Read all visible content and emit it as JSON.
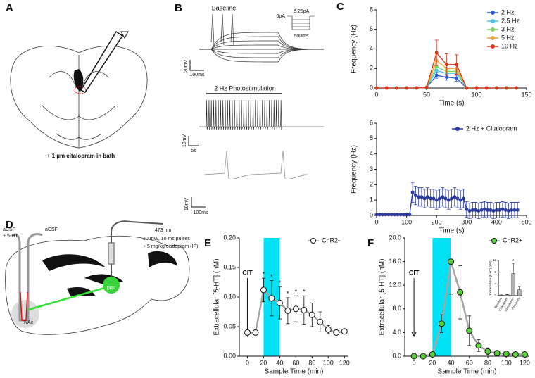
{
  "panel_labels": [
    "A",
    "B",
    "C",
    "D",
    "E",
    "F"
  ],
  "diagram_a": {
    "note": "+ 1 µm citalopram in bath"
  },
  "traces_b": {
    "baseline_title": "Baseline",
    "baseline_v_scale": "20mV",
    "baseline_t_scale": "100ms",
    "protocol_zero": "0pA",
    "protocol_step": "Δ 25pA",
    "protocol_duration": "500ms",
    "stim_title": "2 Hz Photostimulation",
    "stim_v_scale": "10mV",
    "stim_t_scale": "5s",
    "zoom_v_scale": "10mV",
    "zoom_t_scale": "100ms"
  },
  "diagram_d": {
    "probe_left": [
      "aCSF",
      "+ 5-HT"
    ],
    "probe_right": "aCSF",
    "laser": [
      "473 nm",
      "10 mW, 10 ms pulses",
      "+ 5 mg/kg citalopram (IP)"
    ],
    "drn": "DRN",
    "nac": "NAc"
  },
  "chart_data": [
    {
      "type": "line",
      "panel": "C",
      "x_label": "Time (s)",
      "y_label": "Frequency (Hz)",
      "x": [
        0,
        10,
        20,
        30,
        40,
        50,
        60,
        70,
        80,
        90,
        100,
        110,
        120,
        130,
        140
      ],
      "xlim": [
        0,
        150
      ],
      "xticks": [
        0,
        50,
        100,
        150
      ],
      "ylim": [
        0,
        8
      ],
      "yticks": [
        0,
        2,
        4,
        6,
        8
      ],
      "zero_line": true,
      "series": [
        {
          "name": "2 Hz",
          "color": "#2f5fd6",
          "values": [
            0,
            0,
            0,
            0,
            0,
            0.05,
            1.3,
            1.1,
            1.0,
            0,
            0,
            0,
            0,
            0,
            0
          ],
          "errors": [
            0,
            0,
            0,
            0,
            0,
            0,
            0.3,
            0.3,
            0.3,
            0,
            0,
            0,
            0,
            0,
            0
          ]
        },
        {
          "name": "2.5 Hz",
          "color": "#49c2e8",
          "values": [
            0,
            0,
            0,
            0,
            0,
            0.05,
            1.8,
            1.5,
            1.5,
            0,
            0,
            0,
            0,
            0,
            0
          ]
        },
        {
          "name": "3 Hz",
          "color": "#7fd35a",
          "values": [
            0,
            0,
            0,
            0,
            0,
            0.05,
            2.2,
            1.7,
            1.7,
            0,
            0,
            0,
            0,
            0,
            0
          ]
        },
        {
          "name": "5 Hz",
          "color": "#f5a030",
          "values": [
            0,
            0,
            0,
            0,
            0,
            0.05,
            2.8,
            2.0,
            2.0,
            0,
            0,
            0,
            0,
            0,
            0
          ]
        },
        {
          "name": "10 Hz",
          "color": "#d63a1e",
          "values": [
            0,
            0,
            0,
            0,
            0,
            0.05,
            3.6,
            2.4,
            2.4,
            0,
            0,
            0,
            0,
            0,
            0
          ],
          "errors": [
            0,
            0,
            0,
            0,
            0,
            0,
            1.3,
            1.1,
            1.0,
            0,
            0,
            0,
            0,
            0,
            0
          ]
        }
      ]
    },
    {
      "type": "line",
      "panel": "C",
      "x_label": "Time (s)",
      "y_label": "Frequency (Hz)",
      "x": [
        0,
        10,
        20,
        30,
        40,
        50,
        60,
        70,
        80,
        90,
        100,
        110,
        120,
        130,
        140,
        150,
        160,
        170,
        180,
        190,
        200,
        210,
        220,
        230,
        240,
        250,
        260,
        270,
        280,
        290,
        300,
        310,
        320,
        330,
        340,
        350,
        360,
        370,
        380,
        390,
        400,
        410,
        420,
        430,
        440,
        450,
        460,
        470
      ],
      "xlim": [
        0,
        500
      ],
      "xticks": [
        0,
        100,
        200,
        300,
        400,
        500
      ],
      "ylim": [
        0,
        6
      ],
      "yticks": [
        0,
        1,
        2,
        3,
        4,
        5,
        6
      ],
      "zero_line": true,
      "series": [
        {
          "name": "2 Hz + Citalopram",
          "color": "#2b3a9c",
          "values": [
            0.05,
            0.05,
            0.05,
            0.05,
            0.05,
            0.05,
            0.05,
            0.05,
            0.05,
            0.05,
            0.05,
            0.05,
            1.5,
            1.3,
            1.2,
            1.2,
            1.1,
            1.2,
            1.1,
            1.1,
            1.0,
            1.1,
            1.2,
            1.1,
            1.0,
            1.1,
            1.2,
            1.1,
            1.0,
            1.1,
            0.4,
            0.3,
            0.35,
            0.35,
            0.3,
            0.35,
            0.4,
            0.35,
            0.35,
            0.3,
            0.35,
            0.35,
            0.4,
            0.35,
            0.3,
            0.35,
            0.35,
            0.35
          ],
          "errors": [
            0.05,
            0.05,
            0.05,
            0.05,
            0.05,
            0.05,
            0.05,
            0.05,
            0.05,
            0.05,
            0.05,
            0.05,
            0.65,
            0.6,
            0.6,
            0.6,
            0.6,
            0.6,
            0.6,
            0.6,
            0.6,
            0.6,
            0.6,
            0.6,
            0.6,
            0.6,
            0.6,
            0.6,
            0.6,
            0.6,
            0.5,
            0.5,
            0.5,
            0.5,
            0.5,
            0.5,
            0.5,
            0.5,
            0.5,
            0.5,
            0.5,
            0.5,
            0.5,
            0.5,
            0.5,
            0.5,
            0.5,
            0.5
          ]
        }
      ]
    },
    {
      "type": "line",
      "panel": "E",
      "x_label": "Sample Time (min)",
      "y_label": "Extracellular [5-HT] (nM)",
      "x": [
        0,
        10,
        20,
        30,
        40,
        50,
        60,
        70,
        80,
        90,
        100,
        110,
        120
      ],
      "xlim": [
        -10,
        125
      ],
      "xticks": [
        0,
        20,
        40,
        60,
        80,
        100,
        120
      ],
      "ylim": [
        0,
        0.2
      ],
      "yticks": [
        {
          "value": 0,
          "label": "0.00"
        },
        0.05,
        {
          "value": 0.1,
          "label": "0.10"
        },
        0.15,
        {
          "value": 0.2,
          "label": "0.20"
        }
      ],
      "line_color": "#a6a6a6",
      "shaded_range": [
        20,
        40
      ],
      "shade_color": "#00e1f5",
      "arrow_annotation": {
        "label": "CIT",
        "x": 0
      },
      "asterisks": [
        {
          "x": 20,
          "label": "*"
        },
        {
          "x": 30,
          "label": "*"
        },
        {
          "x": 40,
          "label": "*"
        },
        {
          "x": 50,
          "label": "*"
        },
        {
          "x": 60,
          "label": "*"
        },
        {
          "x": 70,
          "label": "*"
        }
      ],
      "series": [
        {
          "name": "ChR2-",
          "color": "#ffffff",
          "values": [
            0.04,
            0.04,
            0.112,
            0.098,
            0.09,
            0.077,
            0.08,
            0.078,
            0.07,
            0.058,
            0.045,
            0.04,
            0.042
          ],
          "errors": [
            0,
            0,
            0.02,
            0.03,
            0.027,
            0.022,
            0.022,
            0.024,
            0.02,
            0.017,
            0.007,
            0.003,
            0.003
          ]
        }
      ]
    },
    {
      "type": "line",
      "panel": "F",
      "x_label": "Sample Time (min)",
      "y_label": "Extracellular [5-HT] (nM)",
      "x": [
        0,
        10,
        20,
        30,
        40,
        50,
        60,
        70,
        80,
        90,
        100,
        110,
        120
      ],
      "xlim": [
        -10,
        125
      ],
      "xticks": [
        0,
        20,
        40,
        60,
        80,
        100,
        120
      ],
      "ylim": [
        0,
        20
      ],
      "yticks": [
        {
          "value": 0,
          "label": "0.0"
        },
        {
          "value": 4,
          "label": "4.0"
        },
        {
          "value": 8,
          "label": "8.0"
        },
        {
          "value": 12,
          "label": "12.0"
        },
        {
          "value": 16,
          "label": "16.0"
        },
        {
          "value": 20,
          "label": "20.0"
        }
      ],
      "line_color": "#a6a6a6",
      "shaded_range": [
        20,
        40
      ],
      "shade_color": "#00e1f5",
      "arrow_annotation": {
        "label": "CIT",
        "x": 0
      },
      "series": [
        {
          "name": "ChR2+",
          "color": "#5cd03c",
          "values": [
            0,
            0,
            0.3,
            5.5,
            16,
            10.8,
            4.3,
            1.8,
            0.8,
            0.5,
            0.4,
            0.3,
            0.3
          ],
          "errors": [
            0.1,
            0.1,
            0.2,
            1.5,
            5.5,
            4.5,
            2.5,
            1.0,
            0.6,
            0.3,
            0.2,
            0.2,
            0.2
          ]
        }
      ]
    },
    {
      "type": "bar",
      "panel": "F-inset",
      "y_label": "Extracellular [5-HT] (nM)",
      "categories": [
        "Baseline",
        "Citalopram",
        "Stimulation",
        "Recovery"
      ],
      "values": [
        0.2,
        0.3,
        7.5,
        2
      ],
      "errors": [
        0.1,
        0.1,
        3.5,
        1
      ],
      "color": "#b0b0b0",
      "ylim": [
        0,
        12
      ],
      "yticks": [
        0,
        4,
        8,
        12
      ],
      "asterisks": [
        {
          "index": 2,
          "label": "*"
        }
      ]
    }
  ]
}
